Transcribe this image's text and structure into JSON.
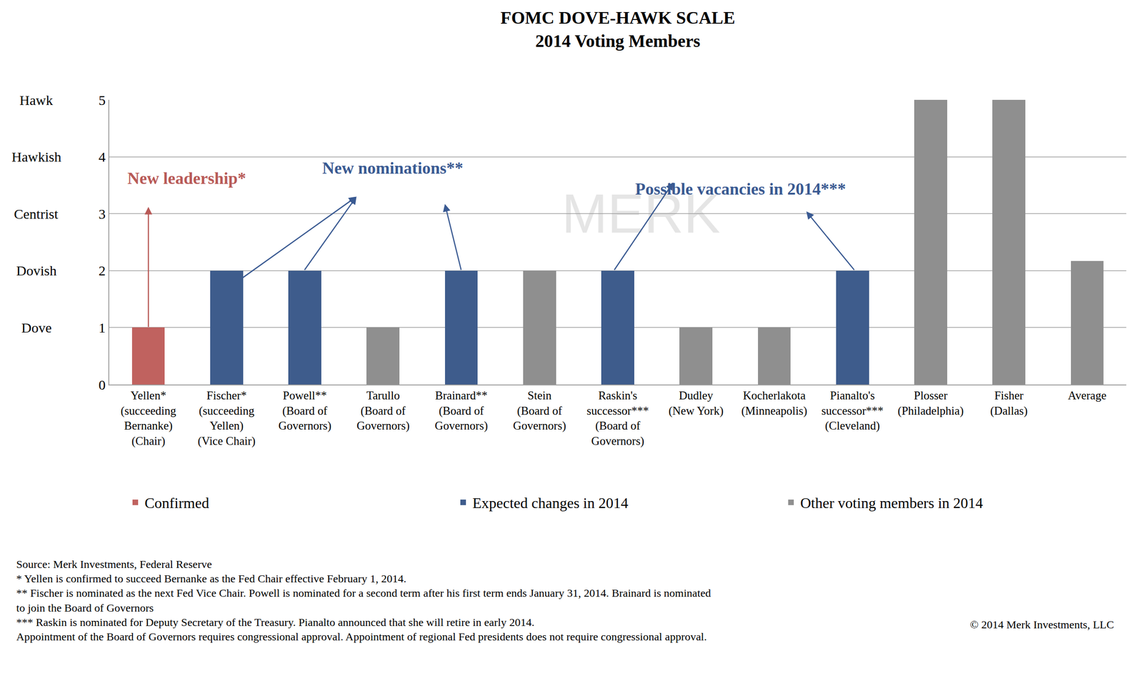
{
  "chart_data": {
    "type": "bar",
    "title": "FOMC DOVE-HAWK SCALE\n2014 Voting Members",
    "categories": [
      "Yellen*\n(succeeding\nBernanke)\n(Chair)",
      "Fischer*\n(succeeding\nYellen)\n(Vice Chair)",
      "Powell**\n(Board of\nGovernors)",
      "Tarullo\n(Board of\nGovernors)",
      "Brainard**\n(Board of\nGovernors)",
      "Stein\n(Board of\nGovernors)",
      "Raskin's\nsuccessor***\n(Board of\nGovernors)",
      "Dudley\n(New York)",
      "Kocherlakota\n(Minneapolis)",
      "Pianalto's\nsuccessor***\n(Cleveland)",
      "Plosser\n(Philadelphia)",
      "Fisher\n(Dallas)",
      "Average"
    ],
    "series": [
      {
        "name": "Confirmed",
        "color": "#c0625f",
        "values": [
          1,
          null,
          null,
          null,
          null,
          null,
          null,
          null,
          null,
          null,
          null,
          null,
          null
        ]
      },
      {
        "name": "Expected changes in 2014",
        "color": "#3e5c8c",
        "values": [
          null,
          2,
          2,
          null,
          2,
          null,
          2,
          null,
          null,
          2,
          null,
          null,
          null
        ]
      },
      {
        "name": "Other voting members in 2014",
        "color": "#8f8f8f",
        "values": [
          null,
          null,
          null,
          1,
          null,
          2,
          null,
          1,
          1,
          null,
          5,
          5,
          2.17
        ]
      }
    ],
    "ylim": [
      0,
      5
    ],
    "yticks": [
      0,
      1,
      2,
      3,
      4,
      5
    ],
    "y_level_names": [
      {
        "value": 1,
        "label": "Dove"
      },
      {
        "value": 2,
        "label": "Dovish"
      },
      {
        "value": 3,
        "label": "Centrist"
      },
      {
        "value": 4,
        "label": "Hawkish"
      },
      {
        "value": 5,
        "label": "Hawk"
      }
    ],
    "grid": true,
    "legend": "bottom",
    "annotations": [
      {
        "text": "New leadership*",
        "color": "#b85a57"
      },
      {
        "text": "New nominations**",
        "color": "#3a5a92"
      },
      {
        "text": "Possible vacancies in 2014***",
        "color": "#3a5a92"
      }
    ],
    "watermark": "MERK",
    "notes": [
      "Source: Merk Investments, Federal Reserve",
      "* Yellen is confirmed to succeed Bernanke as the Fed Chair effective February 1, 2014.",
      "** Fischer is nominated as the next Fed Vice Chair. Powell is nominated for a second term after his first term ends January 31, 2014. Brainard is nominated",
      "to join the Board of Governors",
      "*** Raskin is nominated for Deputy Secretary of the Treasury. Pianalto announced that she will retire in early 2014.",
      "Appointment of the Board of Governors requires congressional approval. Appointment of regional Fed presidents does not require congressional approval."
    ],
    "copyright": "© 2014 Merk Investments, LLC"
  }
}
